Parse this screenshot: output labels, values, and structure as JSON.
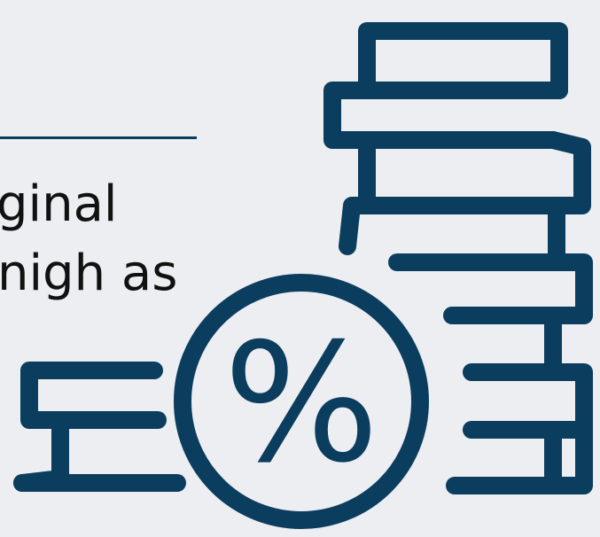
{
  "body_text": {
    "line1": "ginal",
    "line2": "nigh as"
  },
  "illustration": {
    "name": "coin-stacks-with-percent-coin",
    "symbol": "%",
    "icon_color": "#0b3d5e",
    "background_color": "#edeef2"
  }
}
